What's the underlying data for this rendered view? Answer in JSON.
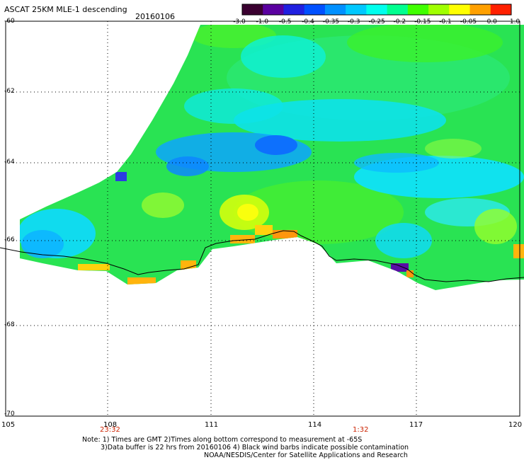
{
  "header": {
    "title": "ASCAT 25KM MLE-1 descending",
    "date": "20160106"
  },
  "colorbar": {
    "labels": [
      "-3.0",
      "-1.0",
      "-0.5",
      "-0.4",
      "-0.35",
      "-0.3",
      "-0.25",
      "-0.2",
      "-0.15",
      "-0.1",
      "-0.05",
      "0.0",
      "1.0"
    ],
    "colors": [
      "#3a0030",
      "#5a00a0",
      "#2020e0",
      "#0050ff",
      "#0090ff",
      "#00c8ff",
      "#00ffee",
      "#00ff90",
      "#40ff00",
      "#a0ff00",
      "#ffff00",
      "#ffa000",
      "#ff2000"
    ]
  },
  "map": {
    "lon_labels": [
      "105",
      "108",
      "111",
      "114",
      "117",
      "120"
    ],
    "lat_labels": [
      "-60",
      "-62",
      "-64",
      "-66",
      "-68",
      "-70"
    ],
    "times": [
      "23:32",
      "1:32"
    ]
  },
  "notes": {
    "line1": "Note: 1) Times are GMT 2)Times along bottom correspond to measurement at -65S",
    "line2": "3)Data buffer is 22 hrs from 20160106 4) Black wind barbs indicate possible contamination",
    "line3": "NOAA/NESDIS/Center for Satellite Applications and Research"
  }
}
